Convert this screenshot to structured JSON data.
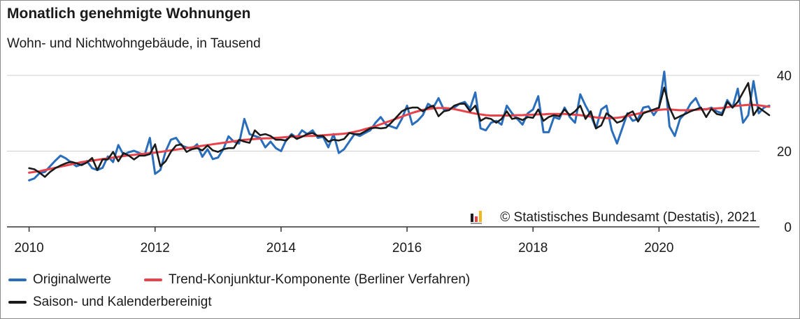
{
  "title": "Monatlich genehmigte Wohnungen",
  "subtitle": "Wohn- und Nichtwohngebäude, in Tausend",
  "copyright": "© Statistisches Bundesamt (Destatis), 2021",
  "colors": {
    "original": "#2a6ebb",
    "trend": "#e8434b",
    "adjusted": "#1a1a1a",
    "grid": "#cfcfcf",
    "axis": "#333333",
    "logo_dark": "#1a1a1a",
    "logo_red": "#e8434b",
    "logo_yellow": "#f2b81b"
  },
  "legend": [
    {
      "key": "original",
      "label": "Originalwerte"
    },
    {
      "key": "trend",
      "label": "Trend-Konjunktur-Komponente (Berliner Verfahren)"
    },
    {
      "key": "adjusted",
      "label": "Saison- und Kalenderbereinigt"
    }
  ],
  "chart_data": {
    "type": "line",
    "x_unit": "year (monthly observations from January 2010)",
    "x_ticks": [
      "2010",
      "2012",
      "2014",
      "2016",
      "2018",
      "2020"
    ],
    "xlim": [
      2009.96,
      2021.55
    ],
    "ylim": [
      0,
      40
    ],
    "y_ticks": [
      "0",
      "20",
      "40"
    ],
    "grid": true,
    "legend_position": "bottom",
    "series": [
      {
        "key": "original",
        "name": "Originalwerte",
        "start": 2010.0,
        "step": 0.0833333,
        "values": [
          12.3,
          12.8,
          14.2,
          14.5,
          16.0,
          17.5,
          18.8,
          18.1,
          17.0,
          16.0,
          16.5,
          17.4,
          15.5,
          15.0,
          15.6,
          18.6,
          17.1,
          21.6,
          19.0,
          19.7,
          20.1,
          19.5,
          18.9,
          23.5,
          14.0,
          15.0,
          19.9,
          23.0,
          23.5,
          21.5,
          21.0,
          20.6,
          21.8,
          18.5,
          20.5,
          17.9,
          18.3,
          20.5,
          23.9,
          22.5,
          22.0,
          28.5,
          24.5,
          24.0,
          23.5,
          21.0,
          22.5,
          20.8,
          20.0,
          23.0,
          24.5,
          23.5,
          25.5,
          24.5,
          25.5,
          23.5,
          23.8,
          21.0,
          24.5,
          19.5,
          20.5,
          22.5,
          24.5,
          24.0,
          24.8,
          25.5,
          27.5,
          29.0,
          27.0,
          26.5,
          26.0,
          28.5,
          32.0,
          27.0,
          28.0,
          29.5,
          32.5,
          31.5,
          34.0,
          31.0,
          31.0,
          31.5,
          32.5,
          33.0,
          31.2,
          35.5,
          26.0,
          25.5,
          27.5,
          28.0,
          27.0,
          32.0,
          30.0,
          28.5,
          27.0,
          30.0,
          31.0,
          34.5,
          25.0,
          25.0,
          29.0,
          28.5,
          31.5,
          29.0,
          27.5,
          35.0,
          32.0,
          29.5,
          26.0,
          31.0,
          32.0,
          25.5,
          22.0,
          26.0,
          30.0,
          28.0,
          28.5,
          31.5,
          31.8,
          29.5,
          31.5,
          41.0,
          26.5,
          24.0,
          28.5,
          30.0,
          32.5,
          34.0,
          31.0,
          31.0,
          31.5,
          30.5,
          30.0,
          33.5,
          31.5,
          36.5,
          27.5,
          29.5,
          38.5,
          30.0,
          31.5,
          32.0
        ]
      },
      {
        "key": "trend",
        "name": "Trend-Konjunktur-Komponente (Berliner Verfahren)",
        "start": 2010.0,
        "step": 0.0833333,
        "values": [
          14.3,
          14.5,
          14.7,
          15.0,
          15.3,
          15.6,
          15.9,
          16.2,
          16.5,
          16.8,
          17.1,
          17.3,
          17.5,
          17.7,
          17.9,
          18.1,
          18.3,
          18.5,
          18.7,
          18.9,
          19.0,
          19.2,
          19.3,
          19.5,
          19.6,
          19.8,
          20.0,
          20.2,
          20.4,
          20.6,
          20.8,
          21.0,
          21.2,
          21.4,
          21.6,
          21.8,
          22.0,
          22.2,
          22.4,
          22.6,
          22.8,
          23.0,
          23.1,
          23.2,
          23.3,
          23.4,
          23.4,
          23.5,
          23.6,
          23.7,
          23.8,
          23.9,
          23.9,
          24.0,
          24.0,
          24.1,
          24.2,
          24.3,
          24.4,
          24.5,
          24.6,
          24.8,
          25.1,
          25.4,
          25.8,
          26.2,
          26.6,
          27.1,
          27.6,
          28.1,
          28.6,
          29.1,
          29.6,
          30.1,
          30.5,
          30.9,
          31.1,
          31.3,
          31.4,
          31.4,
          31.3,
          31.1,
          30.8,
          30.5,
          30.2,
          29.9,
          29.7,
          29.5,
          29.4,
          29.4,
          29.4,
          29.4,
          29.4,
          29.5,
          29.5,
          29.6,
          29.6,
          29.7,
          29.7,
          29.8,
          29.8,
          29.8,
          29.8,
          29.7,
          29.6,
          29.5,
          29.3,
          29.1,
          28.9,
          28.8,
          28.7,
          28.7,
          28.8,
          29.0,
          29.3,
          29.6,
          29.9,
          30.2,
          30.5,
          30.7,
          30.9,
          31.0,
          31.0,
          30.9,
          30.8,
          30.8,
          30.8,
          30.9,
          31.0,
          31.1,
          31.2,
          31.3,
          31.4,
          31.6,
          31.8,
          32.0,
          32.1,
          32.2,
          32.2,
          32.1,
          31.9,
          31.7
        ]
      },
      {
        "key": "adjusted",
        "name": "Saison- und Kalenderbereinigt",
        "start": 2010.0,
        "step": 0.0833333,
        "values": [
          15.5,
          15.2,
          14.3,
          13.2,
          14.5,
          15.5,
          16.2,
          16.8,
          17.2,
          16.8,
          16.3,
          17.0,
          18.2,
          15.0,
          17.8,
          17.8,
          19.8,
          17.3,
          19.5,
          18.8,
          17.8,
          18.8,
          18.8,
          19.2,
          21.8,
          16.0,
          17.3,
          19.8,
          21.5,
          21.8,
          19.8,
          20.5,
          20.8,
          20.2,
          21.5,
          20.2,
          19.8,
          20.5,
          20.8,
          20.8,
          23.0,
          22.5,
          22.2,
          25.5,
          24.2,
          24.5,
          24.0,
          23.0,
          23.0,
          22.8,
          24.2,
          23.2,
          23.8,
          24.5,
          24.8,
          24.0,
          24.0,
          22.5,
          23.0,
          22.8,
          23.2,
          24.8,
          24.5,
          24.5,
          25.2,
          26.0,
          26.2,
          26.0,
          26.2,
          27.5,
          29.0,
          30.5,
          31.2,
          31.5,
          31.5,
          30.5,
          31.5,
          32.0,
          29.2,
          30.5,
          30.8,
          32.0,
          32.5,
          32.5,
          30.5,
          32.0,
          28.0,
          28.8,
          28.5,
          27.5,
          28.5,
          30.5,
          28.5,
          28.8,
          28.2,
          29.0,
          28.8,
          31.0,
          28.0,
          29.0,
          29.5,
          29.2,
          31.0,
          29.5,
          30.5,
          32.0,
          28.5,
          30.5,
          26.0,
          26.8,
          30.0,
          29.0,
          27.5,
          28.0,
          29.8,
          30.5,
          27.8,
          30.0,
          30.5,
          31.0,
          31.5,
          36.8,
          31.5,
          28.5,
          29.2,
          29.8,
          30.5,
          31.0,
          31.5,
          29.0,
          31.2,
          29.8,
          29.5,
          33.0,
          31.5,
          33.0,
          35.5,
          38.0,
          29.5,
          31.5,
          30.5,
          29.5
        ]
      }
    ]
  }
}
